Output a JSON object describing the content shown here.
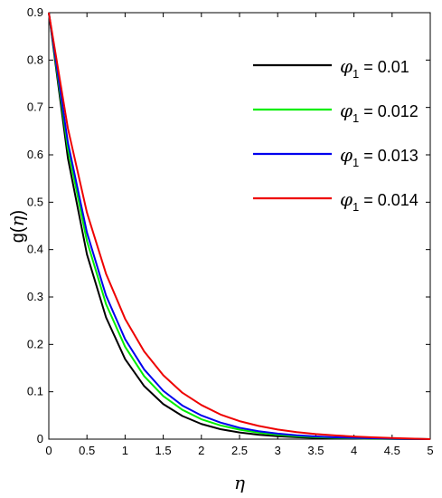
{
  "chart_data": {
    "type": "line",
    "xlabel": "η",
    "ylabel_prefix": "g(",
    "ylabel_symbol": "η",
    "ylabel_suffix": ")",
    "xlim": [
      0,
      5
    ],
    "ylim": [
      0,
      0.9
    ],
    "xticks": [
      "0",
      "0.5",
      "1",
      "1.5",
      "2",
      "2.5",
      "3",
      "3.5",
      "4",
      "4.5",
      "5"
    ],
    "yticks": [
      "0",
      "0.1",
      "0.2",
      "0.3",
      "0.4",
      "0.5",
      "0.6",
      "0.7",
      "0.8",
      "0.9"
    ],
    "grid": false,
    "legend_position": "top-right",
    "x": [
      0,
      0.25,
      0.5,
      0.75,
      1,
      1.25,
      1.5,
      1.75,
      2,
      2.25,
      2.5,
      2.75,
      3,
      3.25,
      3.5,
      3.75,
      4,
      4.25,
      4.5,
      4.75,
      5
    ],
    "series": [
      {
        "legend_symbol": "φ",
        "legend_sub": "1",
        "legend_value": " = 0.01",
        "color": "#000000",
        "values": [
          0.9,
          0.593,
          0.39,
          0.257,
          0.169,
          0.112,
          0.074,
          0.049,
          0.032,
          0.021,
          0.014,
          0.0093,
          0.0061,
          0.004,
          0.0026,
          0.0017,
          0.0011,
          0.0007,
          0.0004,
          0.0002,
          0.0
        ]
      },
      {
        "legend_symbol": "φ",
        "legend_sub": "1",
        "legend_value": " = 0.012",
        "color": "#00ee00",
        "values": [
          0.9,
          0.613,
          0.418,
          0.285,
          0.195,
          0.133,
          0.091,
          0.062,
          0.042,
          0.029,
          0.02,
          0.0135,
          0.0092,
          0.0063,
          0.0043,
          0.0029,
          0.002,
          0.0013,
          0.0008,
          0.0004,
          0.0
        ]
      },
      {
        "legend_symbol": "φ",
        "legend_sub": "1",
        "legend_value": " = 0.013",
        "color": "#0000ee",
        "values": [
          0.9,
          0.626,
          0.436,
          0.303,
          0.211,
          0.147,
          0.102,
          0.071,
          0.05,
          0.035,
          0.024,
          0.0168,
          0.0117,
          0.0081,
          0.0057,
          0.0039,
          0.0027,
          0.0018,
          0.0011,
          0.0005,
          0.0
        ]
      },
      {
        "legend_symbol": "φ",
        "legend_sub": "1",
        "legend_value": " = 0.014",
        "color": "#ee0000",
        "values": [
          0.9,
          0.656,
          0.478,
          0.349,
          0.254,
          0.185,
          0.135,
          0.098,
          0.072,
          0.052,
          0.038,
          0.028,
          0.0203,
          0.0148,
          0.0108,
          0.0078,
          0.0056,
          0.0039,
          0.0025,
          0.0012,
          0.0
        ]
      }
    ]
  }
}
